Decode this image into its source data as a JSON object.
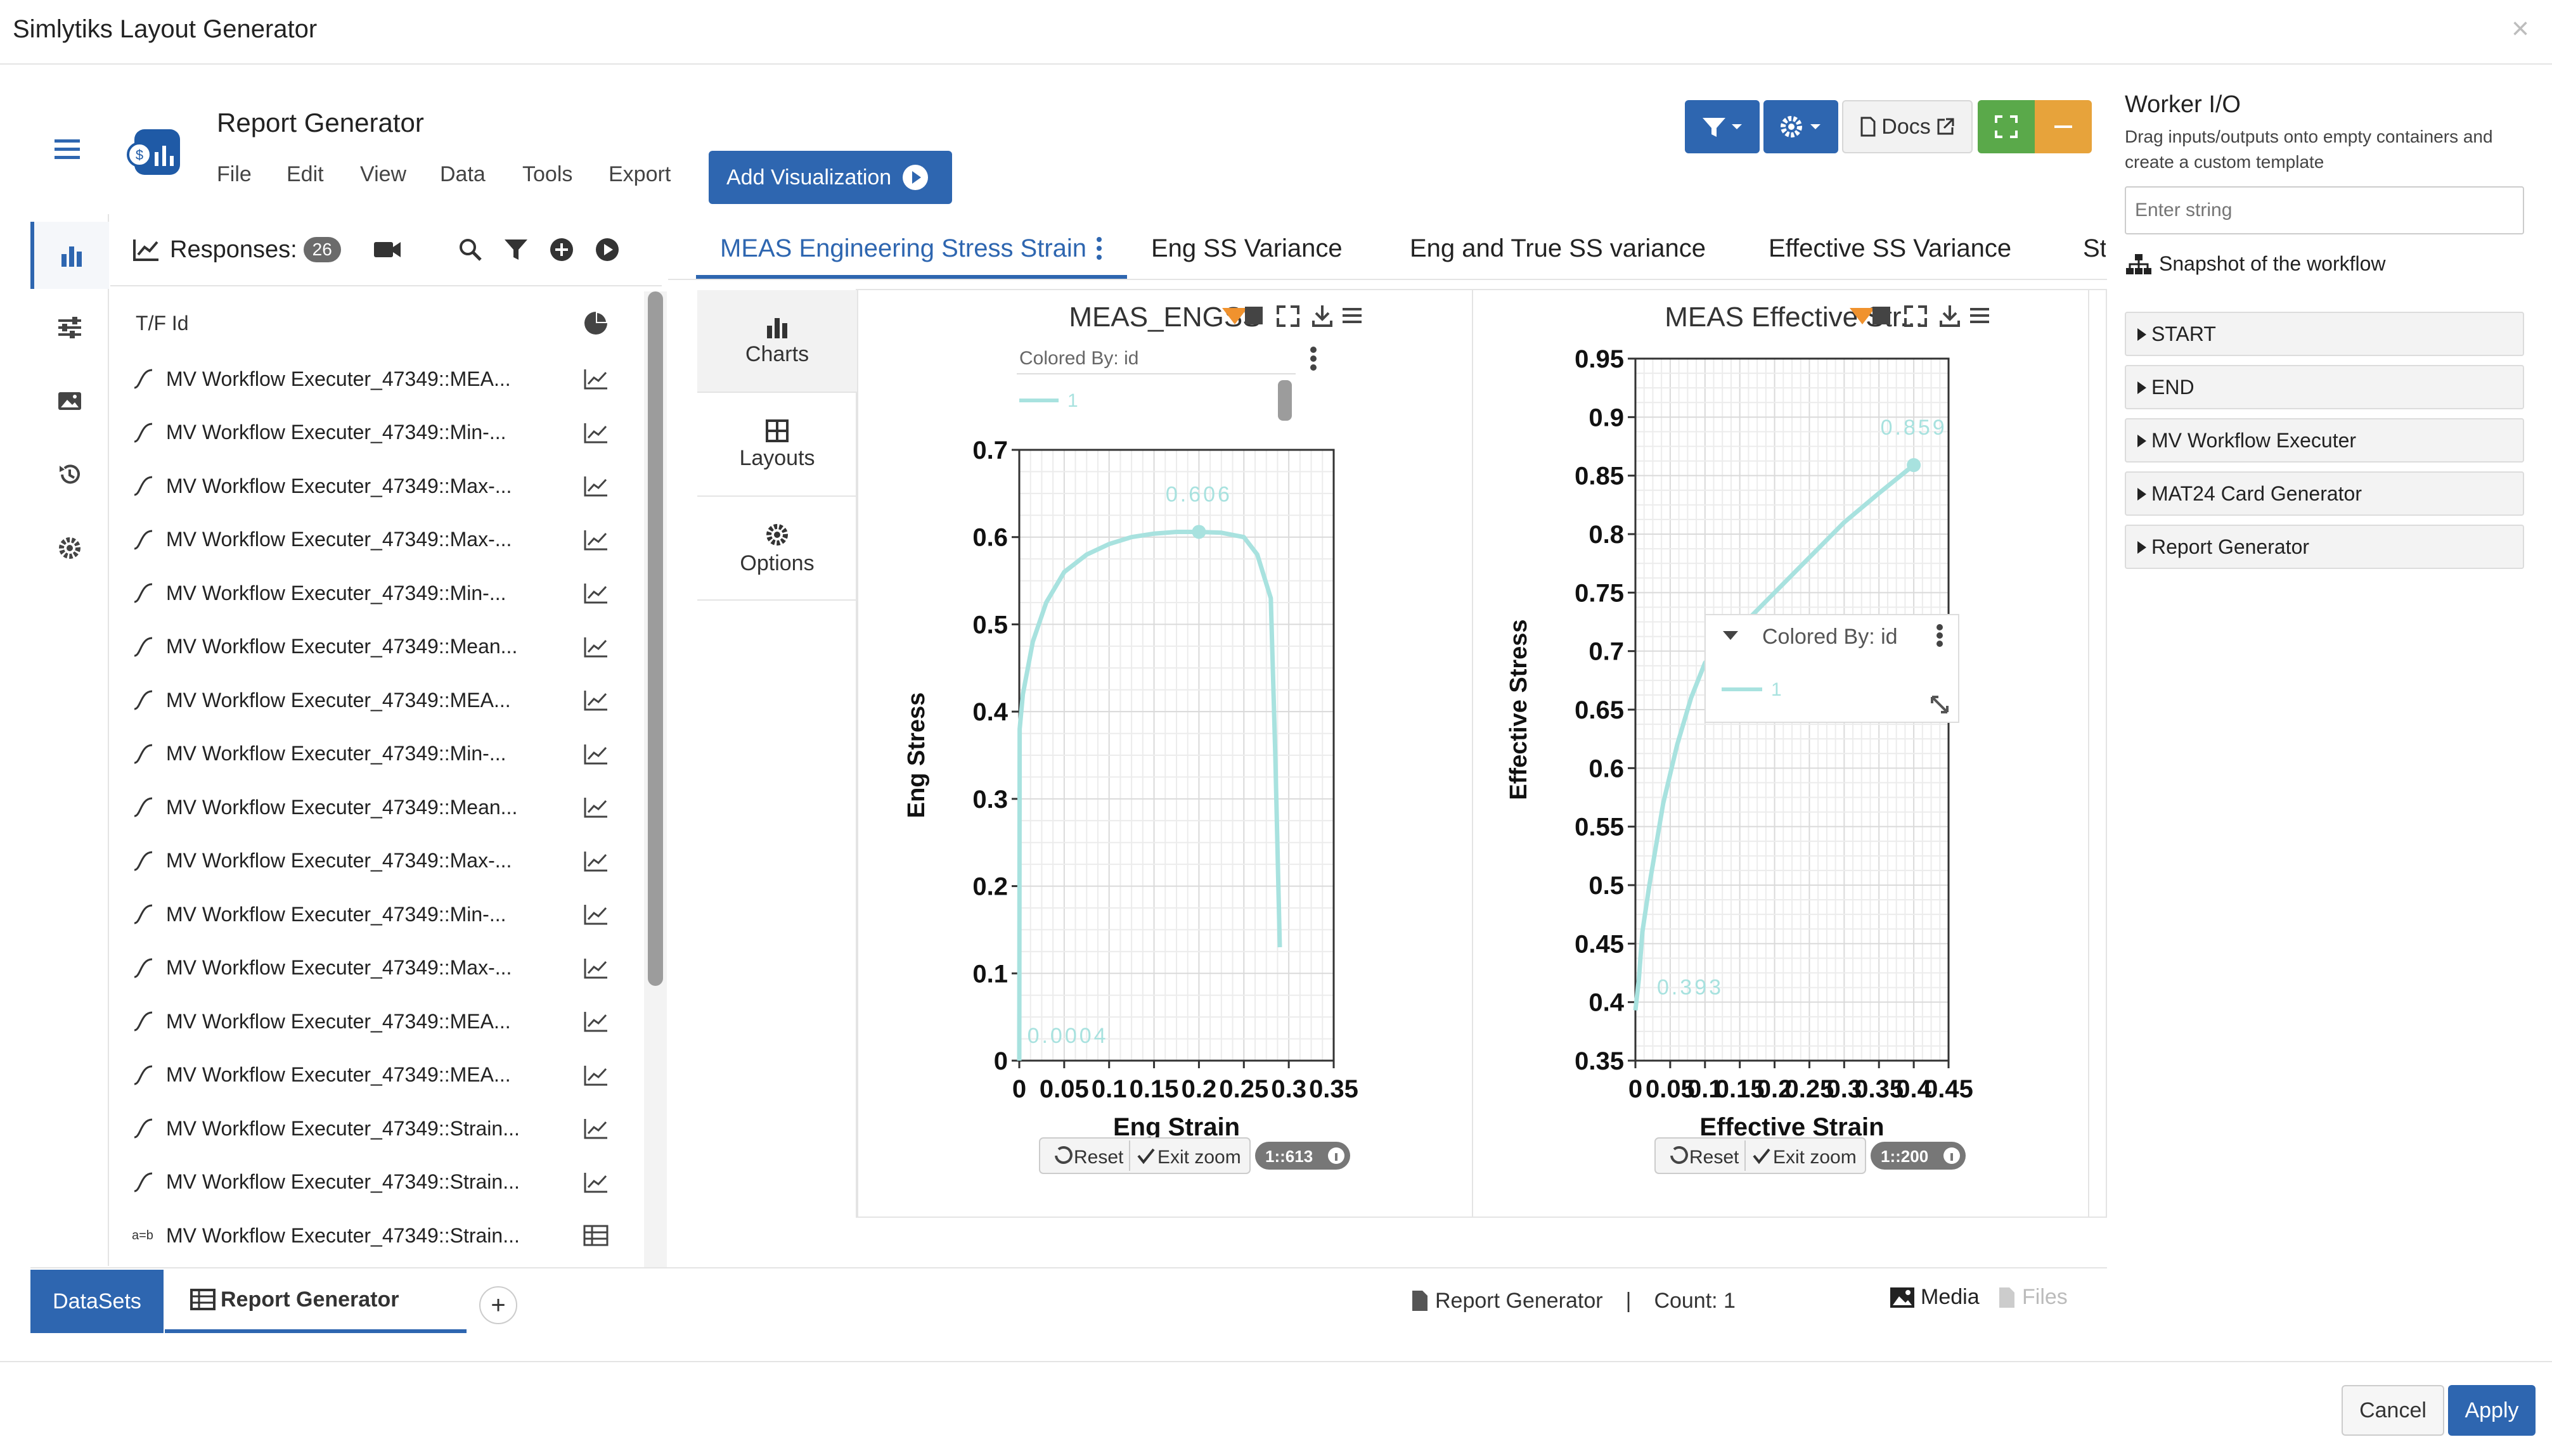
{
  "app": {
    "title": "Simlytiks Layout Generator",
    "close_glyph": "×"
  },
  "header": {
    "title": "Report Generator",
    "menu": [
      "File",
      "Edit",
      "View",
      "Data",
      "Tools",
      "Export"
    ],
    "add_visualization": "Add Visualization",
    "docs_label": "Docs"
  },
  "responses": {
    "label": "Responses:",
    "count": "26",
    "column_label": "T/F Id",
    "items": [
      {
        "label": "MV Workflow Executer_47349::MEA...",
        "kind": "line"
      },
      {
        "label": "MV Workflow Executer_47349::Min-...",
        "kind": "line"
      },
      {
        "label": "MV Workflow Executer_47349::Max-...",
        "kind": "line"
      },
      {
        "label": "MV Workflow Executer_47349::Max-...",
        "kind": "line"
      },
      {
        "label": "MV Workflow Executer_47349::Min-...",
        "kind": "line"
      },
      {
        "label": "MV Workflow Executer_47349::Mean...",
        "kind": "line"
      },
      {
        "label": "MV Workflow Executer_47349::MEA...",
        "kind": "line"
      },
      {
        "label": "MV Workflow Executer_47349::Min-...",
        "kind": "line"
      },
      {
        "label": "MV Workflow Executer_47349::Mean...",
        "kind": "line"
      },
      {
        "label": "MV Workflow Executer_47349::Max-...",
        "kind": "line"
      },
      {
        "label": "MV Workflow Executer_47349::Min-...",
        "kind": "line"
      },
      {
        "label": "MV Workflow Executer_47349::Max-...",
        "kind": "line"
      },
      {
        "label": "MV Workflow Executer_47349::MEA...",
        "kind": "line"
      },
      {
        "label": "MV Workflow Executer_47349::MEA...",
        "kind": "line"
      },
      {
        "label": "MV Workflow Executer_47349::Strain...",
        "kind": "line"
      },
      {
        "label": "MV Workflow Executer_47349::Strain...",
        "kind": "line"
      },
      {
        "label": "MV Workflow Executer_47349::Strain...",
        "kind": "table",
        "prefix": "a=b"
      }
    ]
  },
  "tabs": [
    {
      "label": "MEAS Engineering Stress Strain",
      "active": true
    },
    {
      "label": "Eng SS Variance"
    },
    {
      "label": "Eng and True SS variance"
    },
    {
      "label": "Effective SS Variance"
    },
    {
      "label": "St"
    }
  ],
  "side_options": {
    "charts": "Charts",
    "layouts": "Layouts",
    "options": "Options"
  },
  "chart_data": [
    {
      "type": "line",
      "title": "MEAS_ENGSS",
      "xlabel": "Eng Strain",
      "ylabel": "Eng Stress",
      "xlim": [
        0,
        0.35
      ],
      "ylim": [
        0,
        0.7
      ],
      "xticks": [
        "0",
        "0.05",
        "0.1",
        "0.15",
        "0.2",
        "0.25",
        "0.3",
        "0.35"
      ],
      "yticks": [
        "0",
        "0.1",
        "0.2",
        "0.3",
        "0.4",
        "0.5",
        "0.6",
        "0.7"
      ],
      "legend": {
        "title": "Colored By: id",
        "entries": [
          "1"
        ]
      },
      "series": [
        {
          "name": "1",
          "color": "#a8e2df",
          "x": [
            0,
            0.0004,
            0.004,
            0.015,
            0.03,
            0.05,
            0.075,
            0.1,
            0.125,
            0.15,
            0.175,
            0.2,
            0.225,
            0.25,
            0.265,
            0.28,
            0.285,
            0.29
          ],
          "y": [
            0,
            0.38,
            0.42,
            0.48,
            0.525,
            0.56,
            0.58,
            0.592,
            0.6,
            0.604,
            0.606,
            0.606,
            0.605,
            0.6,
            0.58,
            0.53,
            0.35,
            0.13
          ]
        }
      ],
      "annotations": [
        {
          "text": "0.606",
          "x": 0.2,
          "y": 0.606
        },
        {
          "text": "0.0004",
          "x": 0.0004,
          "y": 0.0
        }
      ],
      "zoom": {
        "reset": "Reset",
        "exit": "Exit zoom",
        "ratio": "1::613"
      }
    },
    {
      "type": "line",
      "title": "MEAS Effective Str...",
      "xlabel": "Effective Strain",
      "ylabel": "Effective Stress",
      "xlim": [
        0,
        0.45
      ],
      "ylim": [
        0.35,
        0.95
      ],
      "xticks": [
        "0",
        "0.05",
        "0.1",
        "0.15",
        "0.2",
        "0.25",
        "0.3",
        "0.35",
        "0.4",
        "0.45"
      ],
      "yticks": [
        "0.35",
        "0.4",
        "0.45",
        "0.5",
        "0.55",
        "0.6",
        "0.65",
        "0.7",
        "0.75",
        "0.8",
        "0.85",
        "0.9",
        "0.95"
      ],
      "legend": {
        "title": "Colored By: id",
        "entries": [
          "1"
        ]
      },
      "series": [
        {
          "name": "1",
          "color": "#a8e2df",
          "x": [
            0,
            0.005,
            0.01,
            0.02,
            0.04,
            0.06,
            0.08,
            0.1,
            0.15,
            0.2,
            0.25,
            0.3,
            0.35,
            0.4
          ],
          "y": [
            0.393,
            0.42,
            0.46,
            0.5,
            0.57,
            0.62,
            0.66,
            0.69,
            0.72,
            0.75,
            0.78,
            0.81,
            0.835,
            0.859
          ]
        }
      ],
      "annotations": [
        {
          "text": "0.859",
          "x": 0.4,
          "y": 0.859
        },
        {
          "text": "0.393",
          "x": 0.02,
          "y": 0.4
        }
      ],
      "zoom": {
        "reset": "Reset",
        "exit": "Exit zoom",
        "ratio": "1::200"
      }
    }
  ],
  "bottom": {
    "datasets_tab": "DataSets",
    "report_tab": "Report Generator",
    "status_name": "Report Generator",
    "status_sep": "|",
    "count": "Count: 1",
    "media": "Media",
    "files": "Files"
  },
  "worker_io": {
    "title": "Worker I/O",
    "description": "Drag inputs/outputs onto empty containers and create a custom template",
    "input_placeholder": "Enter string",
    "snapshot": "Snapshot of the workflow",
    "sections": [
      "START",
      "END",
      "MV Workflow Executer",
      "MAT24 Card Generator",
      "Report Generator"
    ]
  },
  "footer": {
    "cancel": "Cancel",
    "apply": "Apply"
  },
  "colors": {
    "accent": "#2e66b0",
    "series": "#a8e2df",
    "green": "#5aa94a",
    "orange": "#e7a33b"
  }
}
